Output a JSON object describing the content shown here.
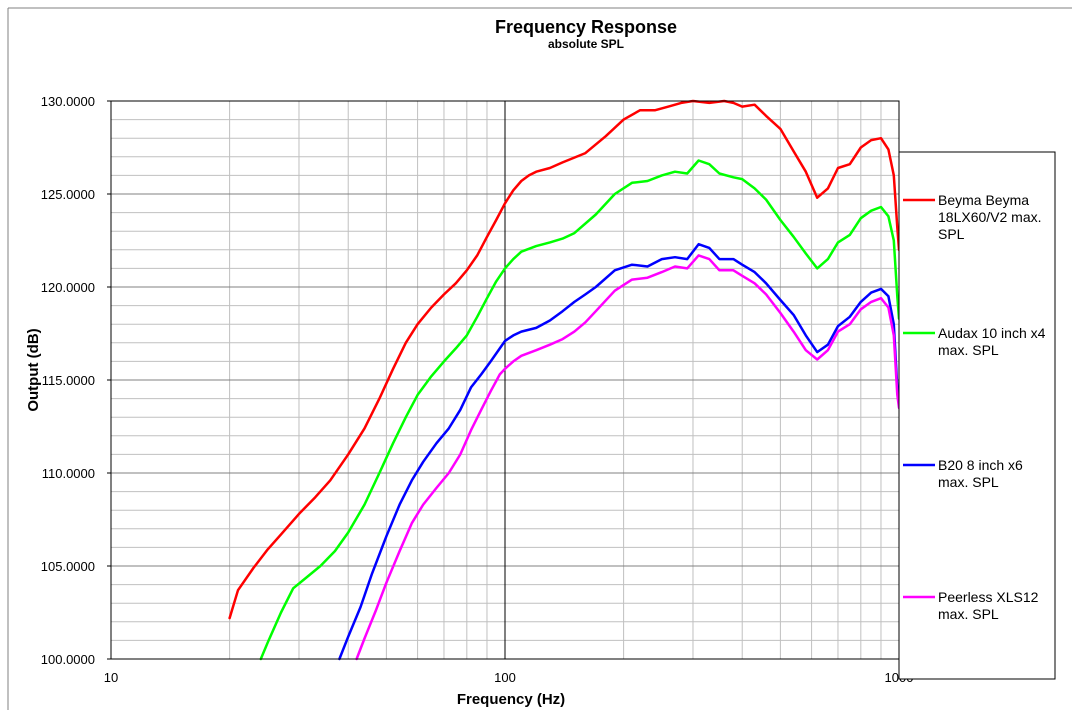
{
  "chart_data": {
    "type": "line",
    "title": "Frequency Response",
    "subtitle": "absolute SPL",
    "xlabel": "Frequency (Hz)",
    "ylabel": "Output (dB)",
    "x_scale": "log",
    "xlim": [
      10,
      1000
    ],
    "ylim": [
      100,
      130
    ],
    "x_ticks": [
      "10",
      "100",
      "1000"
    ],
    "y_ticks": [
      "100.0000",
      "105.0000",
      "110.0000",
      "115.0000",
      "120.0000",
      "125.0000",
      "130.0000"
    ],
    "grid": true,
    "legend_position": "right",
    "series": [
      {
        "name": "Beyma Beyma 18LX60/V2 max. SPL",
        "color": "#ff0000",
        "points": [
          [
            20,
            102.2
          ],
          [
            21,
            103.7
          ],
          [
            23,
            104.9
          ],
          [
            25,
            105.9
          ],
          [
            27,
            106.7
          ],
          [
            30,
            107.8
          ],
          [
            33,
            108.7
          ],
          [
            36,
            109.6
          ],
          [
            40,
            111
          ],
          [
            44,
            112.4
          ],
          [
            48,
            114
          ],
          [
            52,
            115.6
          ],
          [
            56,
            117
          ],
          [
            60,
            118
          ],
          [
            65,
            118.9
          ],
          [
            70,
            119.6
          ],
          [
            75,
            120.2
          ],
          [
            80,
            120.9
          ],
          [
            85,
            121.7
          ],
          [
            90,
            122.7
          ],
          [
            95,
            123.6
          ],
          [
            100,
            124.5
          ],
          [
            105,
            125.2
          ],
          [
            110,
            125.7
          ],
          [
            115,
            126
          ],
          [
            120,
            126.2
          ],
          [
            130,
            126.4
          ],
          [
            140,
            126.7
          ],
          [
            160,
            127.2
          ],
          [
            180,
            128.1
          ],
          [
            200,
            129
          ],
          [
            220,
            129.5
          ],
          [
            240,
            129.5
          ],
          [
            260,
            129.7
          ],
          [
            280,
            129.9
          ],
          [
            300,
            130
          ],
          [
            330,
            129.9
          ],
          [
            360,
            130
          ],
          [
            380,
            129.9
          ],
          [
            400,
            129.7
          ],
          [
            430,
            129.8
          ],
          [
            460,
            129.2
          ],
          [
            500,
            128.5
          ],
          [
            540,
            127.3
          ],
          [
            580,
            126.2
          ],
          [
            620,
            124.8
          ],
          [
            660,
            125.3
          ],
          [
            700,
            126.4
          ],
          [
            750,
            126.6
          ],
          [
            800,
            127.5
          ],
          [
            850,
            127.9
          ],
          [
            900,
            128
          ],
          [
            940,
            127.4
          ],
          [
            970,
            126
          ],
          [
            990,
            123.2
          ],
          [
            1000,
            122
          ]
        ]
      },
      {
        "name": "Audax 10 inch x4 max. SPL",
        "color": "#00ff00",
        "points": [
          [
            24,
            100
          ],
          [
            25,
            100.9
          ],
          [
            27,
            102.5
          ],
          [
            29,
            103.8
          ],
          [
            31,
            104.3
          ],
          [
            34,
            105
          ],
          [
            37,
            105.8
          ],
          [
            40,
            106.8
          ],
          [
            44,
            108.3
          ],
          [
            48,
            110
          ],
          [
            52,
            111.6
          ],
          [
            56,
            113
          ],
          [
            60,
            114.2
          ],
          [
            65,
            115.2
          ],
          [
            70,
            116
          ],
          [
            75,
            116.7
          ],
          [
            80,
            117.4
          ],
          [
            85,
            118.4
          ],
          [
            90,
            119.4
          ],
          [
            95,
            120.3
          ],
          [
            100,
            121
          ],
          [
            105,
            121.5
          ],
          [
            110,
            121.9
          ],
          [
            120,
            122.2
          ],
          [
            130,
            122.4
          ],
          [
            140,
            122.6
          ],
          [
            150,
            122.9
          ],
          [
            170,
            123.9
          ],
          [
            190,
            125
          ],
          [
            210,
            125.6
          ],
          [
            230,
            125.7
          ],
          [
            250,
            126
          ],
          [
            270,
            126.2
          ],
          [
            290,
            126.1
          ],
          [
            310,
            126.8
          ],
          [
            330,
            126.6
          ],
          [
            350,
            126.1
          ],
          [
            380,
            125.9
          ],
          [
            400,
            125.8
          ],
          [
            430,
            125.3
          ],
          [
            460,
            124.7
          ],
          [
            500,
            123.6
          ],
          [
            540,
            122.7
          ],
          [
            580,
            121.8
          ],
          [
            620,
            121
          ],
          [
            660,
            121.5
          ],
          [
            700,
            122.4
          ],
          [
            750,
            122.8
          ],
          [
            800,
            123.7
          ],
          [
            850,
            124.1
          ],
          [
            900,
            124.3
          ],
          [
            940,
            123.8
          ],
          [
            970,
            122.5
          ],
          [
            990,
            119.5
          ],
          [
            1000,
            118.3
          ]
        ]
      },
      {
        "name": "B20 8 inch x6 max. SPL",
        "color": "#0000ff",
        "points": [
          [
            38,
            100
          ],
          [
            40,
            101.2
          ],
          [
            43,
            102.8
          ],
          [
            46,
            104.6
          ],
          [
            50,
            106.6
          ],
          [
            54,
            108.3
          ],
          [
            58,
            109.6
          ],
          [
            62,
            110.6
          ],
          [
            67,
            111.6
          ],
          [
            72,
            112.4
          ],
          [
            77,
            113.4
          ],
          [
            82,
            114.6
          ],
          [
            87,
            115.3
          ],
          [
            92,
            116
          ],
          [
            97,
            116.7
          ],
          [
            100,
            117.1
          ],
          [
            105,
            117.4
          ],
          [
            110,
            117.6
          ],
          [
            120,
            117.8
          ],
          [
            130,
            118.2
          ],
          [
            140,
            118.7
          ],
          [
            150,
            119.2
          ],
          [
            160,
            119.6
          ],
          [
            170,
            120
          ],
          [
            190,
            120.9
          ],
          [
            210,
            121.2
          ],
          [
            230,
            121.1
          ],
          [
            250,
            121.5
          ],
          [
            270,
            121.6
          ],
          [
            290,
            121.5
          ],
          [
            310,
            122.3
          ],
          [
            330,
            122.1
          ],
          [
            350,
            121.5
          ],
          [
            380,
            121.5
          ],
          [
            400,
            121.2
          ],
          [
            430,
            120.8
          ],
          [
            460,
            120.2
          ],
          [
            500,
            119.3
          ],
          [
            540,
            118.5
          ],
          [
            580,
            117.4
          ],
          [
            620,
            116.5
          ],
          [
            660,
            116.9
          ],
          [
            700,
            117.9
          ],
          [
            750,
            118.4
          ],
          [
            800,
            119.2
          ],
          [
            850,
            119.7
          ],
          [
            900,
            119.9
          ],
          [
            940,
            119.5
          ],
          [
            970,
            118
          ],
          [
            990,
            114.6
          ],
          [
            1000,
            113.8
          ]
        ]
      },
      {
        "name": "Peerless XLS12 max. SPL",
        "color": "#ff00ff",
        "points": [
          [
            42,
            100
          ],
          [
            44,
            101.1
          ],
          [
            47,
            102.6
          ],
          [
            50,
            104.1
          ],
          [
            54,
            105.8
          ],
          [
            58,
            107.3
          ],
          [
            62,
            108.3
          ],
          [
            67,
            109.2
          ],
          [
            72,
            110
          ],
          [
            77,
            111
          ],
          [
            82,
            112.3
          ],
          [
            87,
            113.4
          ],
          [
            92,
            114.4
          ],
          [
            97,
            115.3
          ],
          [
            100,
            115.6
          ],
          [
            105,
            116
          ],
          [
            110,
            116.3
          ],
          [
            120,
            116.6
          ],
          [
            130,
            116.9
          ],
          [
            140,
            117.2
          ],
          [
            150,
            117.6
          ],
          [
            160,
            118.1
          ],
          [
            170,
            118.7
          ],
          [
            190,
            119.8
          ],
          [
            210,
            120.4
          ],
          [
            230,
            120.5
          ],
          [
            250,
            120.8
          ],
          [
            270,
            121.1
          ],
          [
            290,
            121
          ],
          [
            310,
            121.7
          ],
          [
            330,
            121.5
          ],
          [
            350,
            120.9
          ],
          [
            380,
            120.9
          ],
          [
            400,
            120.6
          ],
          [
            430,
            120.2
          ],
          [
            460,
            119.6
          ],
          [
            500,
            118.6
          ],
          [
            540,
            117.6
          ],
          [
            580,
            116.6
          ],
          [
            620,
            116.1
          ],
          [
            660,
            116.6
          ],
          [
            700,
            117.6
          ],
          [
            750,
            118
          ],
          [
            800,
            118.8
          ],
          [
            850,
            119.2
          ],
          [
            900,
            119.4
          ],
          [
            940,
            118.9
          ],
          [
            970,
            117.4
          ],
          [
            990,
            114.2
          ],
          [
            1000,
            113.5
          ]
        ]
      }
    ]
  }
}
